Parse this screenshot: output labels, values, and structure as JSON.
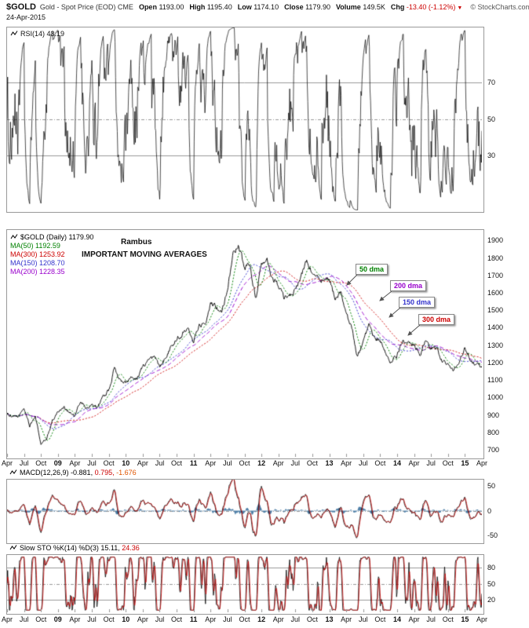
{
  "header": {
    "symbol": "$GOLD",
    "description": "Gold - Spot Price (EOD) CME",
    "date": "24-Apr-2015",
    "credit": "© StockCharts.com",
    "quote": [
      {
        "label": "Open",
        "value": "1193.00"
      },
      {
        "label": "High",
        "value": "1195.40"
      },
      {
        "label": "Low",
        "value": "1174.10"
      },
      {
        "label": "Close",
        "value": "1179.90"
      },
      {
        "label": "Volume",
        "value": "149.5K"
      },
      {
        "label": "Chg",
        "value": "-13.40 (-1.12%)",
        "color": "#cc0000",
        "arrow": "▼"
      }
    ]
  },
  "panels": {
    "rsi": {
      "label": "RSI(14)",
      "value": "43.19",
      "ticks": [
        70,
        50,
        30
      ]
    },
    "main": {
      "legend": [
        {
          "text": "$GOLD (Daily) 1179.90",
          "color": "#000000"
        },
        {
          "text": "MA(50) 1192.59",
          "color": "#008000"
        },
        {
          "text": "MA(300) 1253.92",
          "color": "#cc0000"
        },
        {
          "text": "MA(150) 1208.70",
          "color": "#3333cc"
        },
        {
          "text": "MA(200) 1228.35",
          "color": "#9900cc"
        }
      ],
      "annotations": {
        "rambus": "Rambus",
        "title": "IMPORTANT MOVING AVERAGES"
      },
      "callouts": [
        {
          "label": "50 dma",
          "color": "#008000"
        },
        {
          "label": "200 dma",
          "color": "#9900cc"
        },
        {
          "label": "150 dma",
          "color": "#3333cc"
        },
        {
          "label": "300 dma",
          "color": "#cc0000"
        }
      ],
      "y_ticks": [
        1900,
        1800,
        1700,
        1600,
        1500,
        1400,
        1300,
        1200,
        1100,
        1000,
        900,
        800,
        700
      ]
    },
    "macd": {
      "label": "MACD(12,26,9)",
      "v1": "-0.881,",
      "v2": "0.795,",
      "v3": "-1.676",
      "ticks": [
        50,
        0,
        -50
      ]
    },
    "sto": {
      "label": "Slow STO %K(14) %D(3)",
      "v1": "15.11,",
      "v2": "24.36",
      "ticks": [
        80,
        50,
        20
      ]
    }
  },
  "x_axis": {
    "ticks": [
      {
        "m": 0,
        "label": "Apr"
      },
      {
        "m": 3,
        "label": "Jul"
      },
      {
        "m": 6,
        "label": "Oct"
      },
      {
        "m": 9,
        "label": "09",
        "bold": true
      },
      {
        "m": 12,
        "label": "Apr"
      },
      {
        "m": 15,
        "label": "Jul"
      },
      {
        "m": 18,
        "label": "Oct"
      },
      {
        "m": 21,
        "label": "10",
        "bold": true
      },
      {
        "m": 24,
        "label": "Apr"
      },
      {
        "m": 27,
        "label": "Jul"
      },
      {
        "m": 30,
        "label": "Oct"
      },
      {
        "m": 33,
        "label": "11",
        "bold": true
      },
      {
        "m": 36,
        "label": "Apr"
      },
      {
        "m": 39,
        "label": "Jul"
      },
      {
        "m": 42,
        "label": "Oct"
      },
      {
        "m": 45,
        "label": "12",
        "bold": true
      },
      {
        "m": 48,
        "label": "Apr"
      },
      {
        "m": 51,
        "label": "Jul"
      },
      {
        "m": 54,
        "label": "Oct"
      },
      {
        "m": 57,
        "label": "13",
        "bold": true
      },
      {
        "m": 60,
        "label": "Apr"
      },
      {
        "m": 63,
        "label": "Jul"
      },
      {
        "m": 66,
        "label": "Oct"
      },
      {
        "m": 69,
        "label": "14",
        "bold": true
      },
      {
        "m": 72,
        "label": "Apr"
      },
      {
        "m": 75,
        "label": "Jul"
      },
      {
        "m": 78,
        "label": "Oct"
      },
      {
        "m": 81,
        "label": "15",
        "bold": true
      },
      {
        "m": 84,
        "label": "Apr"
      }
    ]
  },
  "chart_data": {
    "type": "line",
    "title": "$GOLD (Daily)",
    "x_start": "2008-04",
    "x_end": "2015-04",
    "x_interval": "1 month",
    "ylim": [
      700,
      1900
    ],
    "last_close": 1179.9,
    "price_monthly": [
      910,
      885,
      890,
      940,
      835,
      885,
      730,
      760,
      870,
      920,
      945,
      920,
      885,
      975,
      935,
      950,
      950,
      1005,
      1045,
      1175,
      1095,
      1080,
      1115,
      1115,
      1180,
      1215,
      1240,
      1170,
      1245,
      1310,
      1345,
      1375,
      1420,
      1335,
      1410,
      1430,
      1560,
      1535,
      1500,
      1630,
      1825,
      1875,
      1720,
      1745,
      1565,
      1740,
      1770,
      1670,
      1650,
      1560,
      1600,
      1615,
      1690,
      1775,
      1720,
      1715,
      1675,
      1660,
      1580,
      1595,
      1470,
      1390,
      1230,
      1315,
      1395,
      1330,
      1325,
      1250,
      1200,
      1245,
      1320,
      1340,
      1290,
      1250,
      1325,
      1285,
      1285,
      1210,
      1170,
      1155,
      1185,
      1285,
      1215,
      1185,
      1180
    ],
    "overlays": [
      {
        "name": "MA(300)",
        "current": 1253.92,
        "period_days": 300,
        "color": "#cc0000",
        "style": "dotted"
      },
      {
        "name": "MA(200)",
        "current": 1228.35,
        "period_days": 200,
        "color": "#9900cc",
        "style": "dashed"
      },
      {
        "name": "MA(150)",
        "current": 1208.7,
        "period_days": 150,
        "color": "#3333cc",
        "style": "dotted"
      },
      {
        "name": "MA(50)",
        "current": 1192.59,
        "period_days": 50,
        "color": "#008000",
        "style": "dotted"
      }
    ],
    "indicators": {
      "rsi": {
        "name": "RSI(14)",
        "current": 43.19,
        "range": [
          0,
          100
        ],
        "ref_lines": [
          70,
          50,
          30
        ]
      },
      "macd": {
        "name": "MACD(12,26,9)",
        "current": [
          -0.881,
          0.795,
          -1.676
        ],
        "ylim": [
          -60,
          60
        ],
        "ref_lines": [
          50,
          0,
          -50
        ]
      },
      "stochastics": {
        "name": "Slow STO %K(14) %D(3)",
        "current": [
          15.11,
          24.36
        ],
        "range": [
          0,
          100
        ],
        "ref_lines": [
          80,
          50,
          20
        ]
      }
    }
  }
}
